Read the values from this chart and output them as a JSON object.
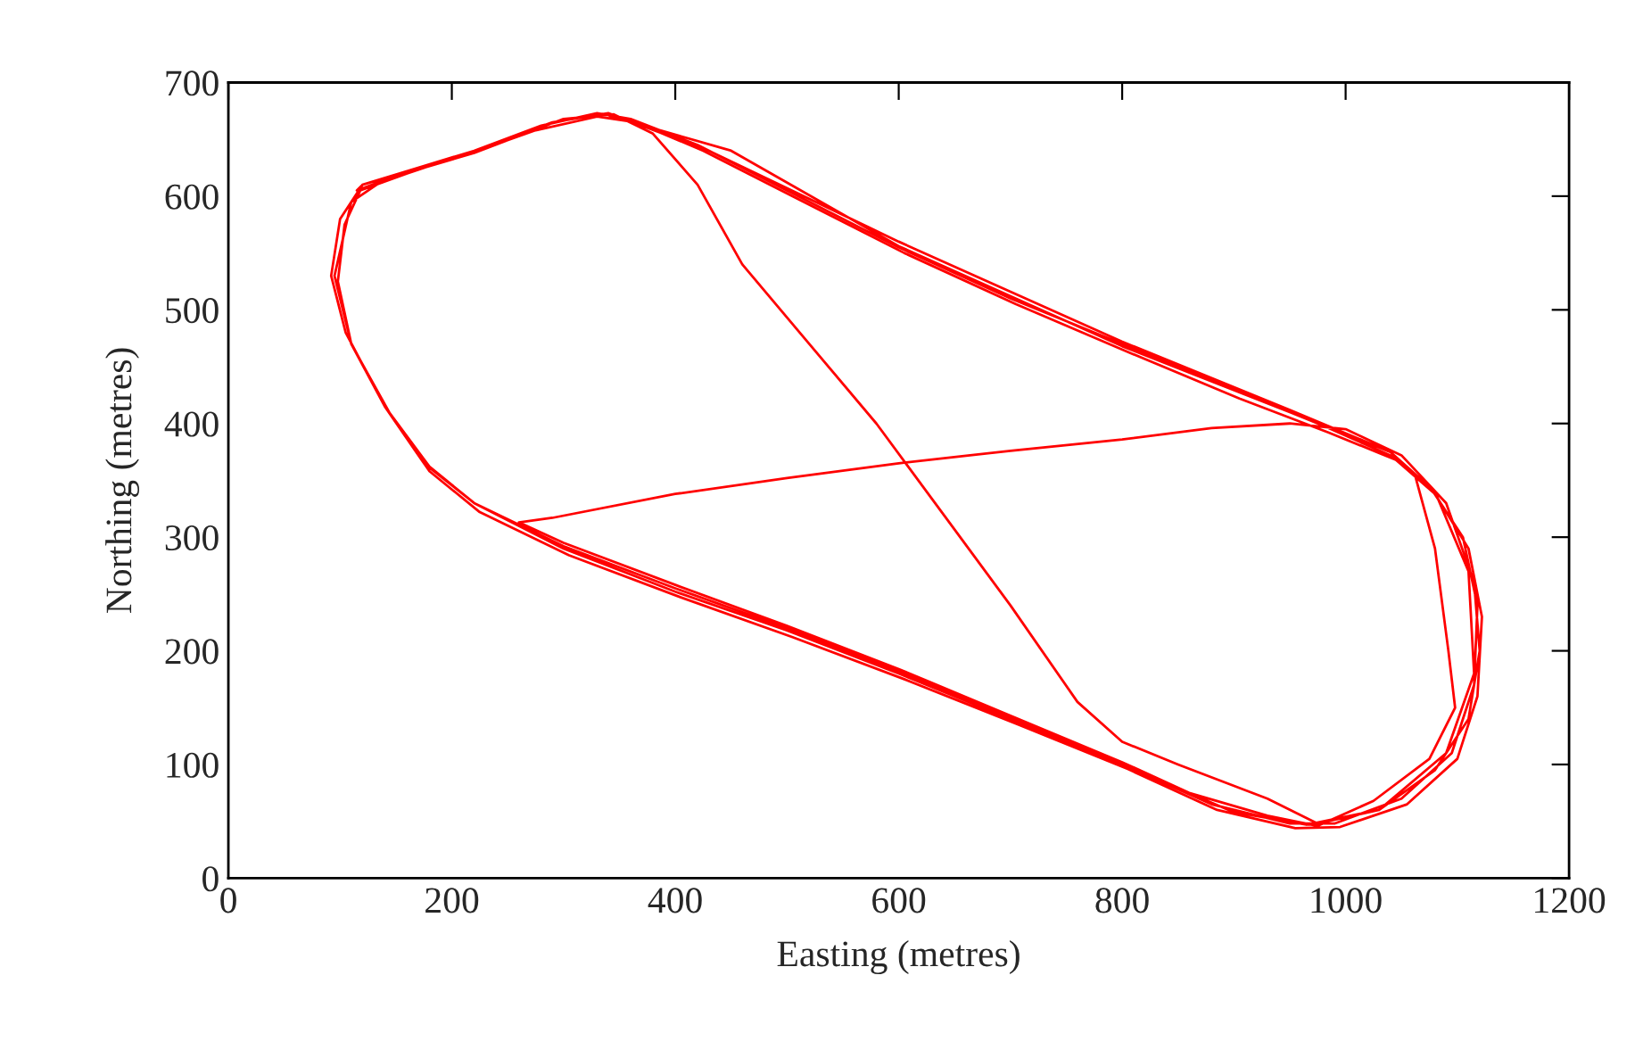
{
  "chart_data": {
    "type": "line",
    "xlabel": "Easting (metres)",
    "ylabel": "Northing (metres)",
    "xlim": [
      0,
      1200
    ],
    "ylim": [
      0,
      700
    ],
    "xticks": [
      0,
      200,
      400,
      600,
      800,
      1000,
      1200
    ],
    "yticks": [
      0,
      100,
      200,
      300,
      400,
      500,
      600,
      700
    ],
    "grid": false,
    "legend": false,
    "marker": "none",
    "line_style": "solid",
    "series": [
      {
        "color": "#ff0000",
        "x": [
          120,
          160,
          220,
          280,
          330,
          360,
          420,
          500,
          600,
          700,
          800,
          900,
          980,
          1040,
          1075,
          1105,
          1118,
          1115,
          1095,
          1050,
          990,
          950,
          880,
          800,
          700,
          600,
          500,
          400,
          300,
          220,
          175,
          140,
          105,
          92,
          100,
          120,
          115,
          155,
          215,
          275,
          330,
          365,
          425,
          505,
          605,
          705,
          805,
          905,
          985,
          1045,
          1080,
          1110,
          1122,
          1118,
          1100,
          1055,
          995,
          955,
          885,
          805,
          705,
          605,
          505,
          405,
          305,
          225,
          180,
          145,
          110,
          98,
          104,
          118,
          160,
          230,
          290,
          340,
          430,
          600,
          800,
          950,
          1040,
          1062,
          1080,
          1092,
          1098,
          1075,
          1025,
          975,
          930,
          860,
          800,
          700,
          600,
          500,
          400,
          300,
          260,
          290,
          400,
          500,
          600,
          700,
          800,
          880,
          950,
          1000,
          1050,
          1090,
          1115,
          1120,
          1110,
          1080,
          1030,
          965,
          900,
          800,
          700,
          600,
          500,
          400,
          300,
          220,
          180,
          140,
          110,
          95,
          110,
          140,
          220,
          300,
          345,
          380,
          420,
          460,
          520,
          580,
          640,
          700,
          760,
          800,
          850,
          930,
          975,
          1030,
          1090,
          1115,
          1110,
          1080,
          1040,
          950,
          800,
          600,
          450,
          340
        ],
        "values": [
          610,
          622,
          640,
          662,
          673,
          668,
          645,
          605,
          555,
          510,
          470,
          430,
          398,
          372,
          345,
          300,
          240,
          170,
          110,
          70,
          48,
          48,
          65,
          100,
          140,
          180,
          218,
          252,
          290,
          330,
          365,
          415,
          480,
          530,
          580,
          610,
          605,
          620,
          637,
          658,
          670,
          665,
          640,
          600,
          550,
          505,
          463,
          422,
          392,
          368,
          338,
          290,
          230,
          160,
          105,
          65,
          45,
          44,
          60,
          96,
          136,
          175,
          212,
          247,
          284,
          322,
          358,
          408,
          470,
          525,
          575,
          605,
          620,
          643,
          665,
          673,
          640,
          560,
          472,
          412,
          375,
          355,
          290,
          200,
          150,
          105,
          68,
          46,
          55,
          75,
          102,
          143,
          184,
          222,
          258,
          295,
          313,
          317,
          338,
          352,
          365,
          376,
          386,
          396,
          400,
          395,
          372,
          330,
          260,
          200,
          140,
          95,
          60,
          47,
          58,
          100,
          142,
          182,
          220,
          255,
          292,
          330,
          362,
          415,
          470,
          530,
          595,
          615,
          638,
          668,
          672,
          655,
          610,
          540,
          470,
          400,
          320,
          240,
          155,
          120,
          100,
          70,
          48,
          60,
          110,
          180,
          270,
          340,
          375,
          410,
          468,
          556,
          640,
          671
        ]
      }
    ]
  }
}
